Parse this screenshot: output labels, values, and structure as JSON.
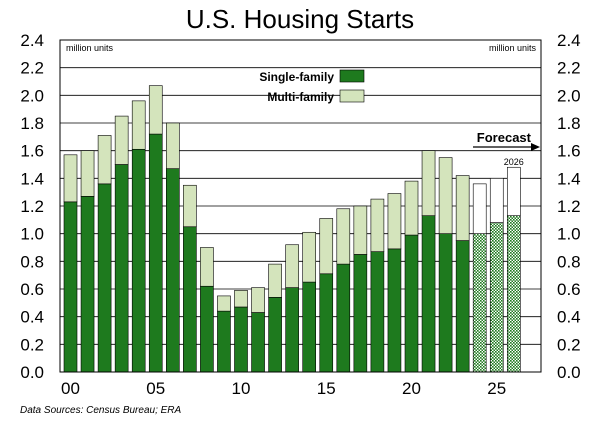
{
  "chart_data": {
    "type": "bar",
    "stacked": true,
    "title": "U.S. Housing Starts",
    "units_left": "million units",
    "units_right": "million units",
    "ylim": [
      0,
      2.4
    ],
    "yticks": [
      "0.0",
      "0.2",
      "0.4",
      "0.6",
      "0.8",
      "1.0",
      "1.2",
      "1.4",
      "1.6",
      "1.8",
      "2.0",
      "2.2",
      "2.4"
    ],
    "xticks": [
      "00",
      "05",
      "10",
      "15",
      "20",
      "25"
    ],
    "grid": true,
    "legend_position": "top-center",
    "x": [
      2000,
      2001,
      2002,
      2003,
      2004,
      2005,
      2006,
      2007,
      2008,
      2009,
      2010,
      2011,
      2012,
      2013,
      2014,
      2015,
      2016,
      2017,
      2018,
      2019,
      2020,
      2021,
      2022,
      2023,
      2024,
      2025,
      2026
    ],
    "series": [
      {
        "name": "Single-family",
        "color": "#1e7a1e",
        "values": [
          1.23,
          1.27,
          1.36,
          1.5,
          1.61,
          1.72,
          1.47,
          1.05,
          0.62,
          0.44,
          0.47,
          0.43,
          0.54,
          0.61,
          0.65,
          0.71,
          0.78,
          0.85,
          0.87,
          0.89,
          0.99,
          1.13,
          1.0,
          0.95,
          1.0,
          1.08,
          1.13
        ]
      },
      {
        "name": "Multi-family",
        "color": "#d4e4bc",
        "values": [
          0.34,
          0.33,
          0.35,
          0.35,
          0.35,
          0.35,
          0.33,
          0.3,
          0.28,
          0.11,
          0.12,
          0.18,
          0.24,
          0.31,
          0.36,
          0.4,
          0.4,
          0.35,
          0.38,
          0.4,
          0.39,
          0.47,
          0.55,
          0.47,
          0.36,
          0.32,
          0.35
        ]
      }
    ],
    "forecast_label": "Forecast",
    "forecast_from": 2024,
    "forecast_year_label": "2026",
    "source": "Data Sources: Census Bureau; ERA"
  }
}
